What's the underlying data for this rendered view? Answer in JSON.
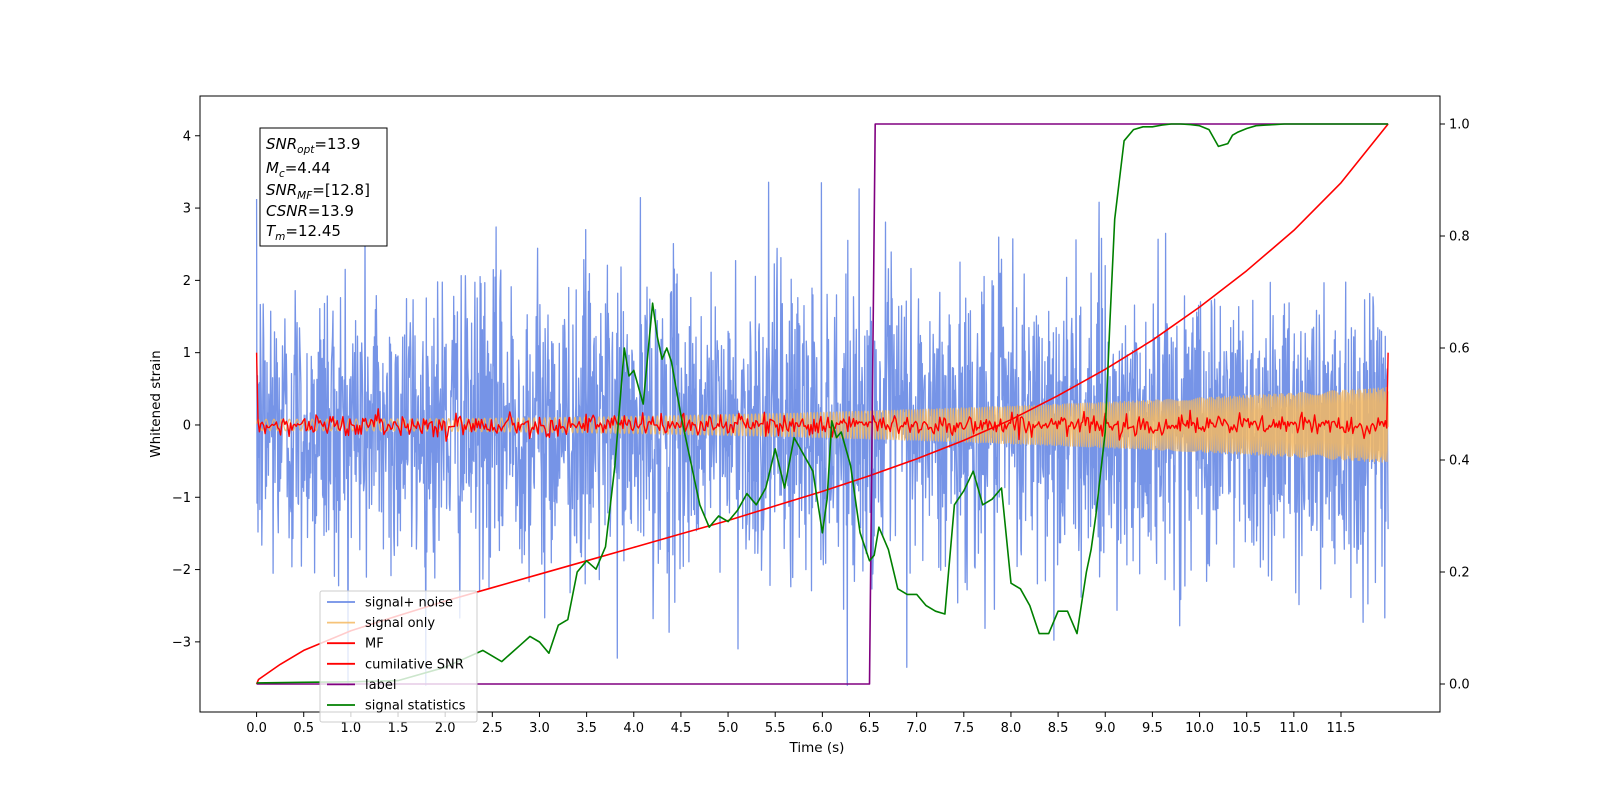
{
  "chart_data": {
    "type": "line",
    "xlabel": "Time (s)",
    "ylabel": "Whitened strain",
    "xlim": [
      -0.6,
      12.55
    ],
    "ylim": [
      -3.97,
      4.55
    ],
    "y2lim": [
      -0.05,
      1.05
    ],
    "x_ticks": [
      0.0,
      0.5,
      1.0,
      1.5,
      2.0,
      2.5,
      3.0,
      3.5,
      4.0,
      4.5,
      5.0,
      5.5,
      6.0,
      6.5,
      7.0,
      7.5,
      8.0,
      8.5,
      9.0,
      9.5,
      10.0,
      10.5,
      11.0,
      11.5
    ],
    "x_tick_labels": [
      "0.0",
      "0.5",
      "1.0",
      "1.5",
      "2.0",
      "2.5",
      "3.0",
      "3.5",
      "4.0",
      "4.5",
      "5.0",
      "5.5",
      "6.0",
      "6.5",
      "7.0",
      "7.5",
      "8.0",
      "8.5",
      "9.0",
      "9.5",
      "10.0",
      "10.5",
      "11.0",
      "11.5"
    ],
    "y_ticks": [
      -3,
      -2,
      -1,
      0,
      1,
      2,
      3,
      4
    ],
    "y_tick_labels": [
      "−3",
      "−2",
      "−1",
      "0",
      "1",
      "2",
      "3",
      "4"
    ],
    "y2_ticks": [
      0.0,
      0.2,
      0.4,
      0.6,
      0.8,
      1.0
    ],
    "y2_tick_labels": [
      "0.0",
      "0.2",
      "0.4",
      "0.6",
      "0.8",
      "1.0"
    ],
    "grid": false,
    "legend_position": "lower-left",
    "duration": 12.0,
    "series": [
      {
        "name": "signal+ noise",
        "color": "#6f8ee6",
        "axis": "left",
        "kind": "noise",
        "noise_std": 1.0,
        "noise_offset": 0.35,
        "samples": 2400
      },
      {
        "name": "signal only",
        "color": "#f5b962",
        "axis": "left",
        "kind": "chirp",
        "amplitude_start": 0.08,
        "amplitude_end": 0.52,
        "f_start": 12,
        "f_end": 60,
        "samples": 4000
      },
      {
        "name": "MF",
        "color": "#ff0000",
        "axis": "left",
        "kind": "mf",
        "start_value": 1.0,
        "noise_std": 0.07,
        "samples": 800
      },
      {
        "name": "cumilative SNR",
        "color": "#ff0000",
        "axis": "right",
        "kind": "curve",
        "x": [
          0.0,
          0.02,
          0.25,
          0.5,
          1.0,
          1.5,
          2.0,
          2.5,
          3.0,
          3.5,
          4.0,
          4.5,
          5.0,
          5.5,
          6.0,
          6.5,
          7.0,
          7.5,
          8.0,
          8.5,
          9.0,
          9.5,
          10.0,
          10.5,
          11.0,
          11.5,
          12.0
        ],
        "y": [
          0.0,
          0.008,
          0.035,
          0.06,
          0.095,
          0.122,
          0.148,
          0.172,
          0.196,
          0.22,
          0.244,
          0.268,
          0.292,
          0.318,
          0.344,
          0.372,
          0.402,
          0.435,
          0.472,
          0.515,
          0.562,
          0.614,
          0.673,
          0.738,
          0.81,
          0.895,
          1.0
        ]
      },
      {
        "name": "label",
        "color": "#800080",
        "axis": "right",
        "kind": "step",
        "x": [
          0.0,
          6.5,
          6.56,
          12.0
        ],
        "y": [
          0.0,
          0.0,
          1.0,
          1.0
        ]
      },
      {
        "name": "signal statistics",
        "color": "#008000",
        "axis": "right",
        "kind": "curve",
        "x": [
          0.0,
          0.5,
          1.0,
          1.5,
          2.0,
          2.2,
          2.4,
          2.6,
          2.8,
          2.9,
          3.0,
          3.1,
          3.2,
          3.3,
          3.4,
          3.5,
          3.6,
          3.7,
          3.8,
          3.9,
          3.95,
          4.0,
          4.1,
          4.2,
          4.25,
          4.3,
          4.35,
          4.4,
          4.5,
          4.6,
          4.7,
          4.8,
          4.9,
          5.0,
          5.1,
          5.2,
          5.3,
          5.4,
          5.5,
          5.6,
          5.7,
          5.8,
          5.9,
          6.0,
          6.05,
          6.1,
          6.15,
          6.2,
          6.3,
          6.4,
          6.5,
          6.55,
          6.6,
          6.7,
          6.8,
          6.9,
          7.0,
          7.1,
          7.2,
          7.3,
          7.4,
          7.5,
          7.6,
          7.7,
          7.8,
          7.9,
          8.0,
          8.1,
          8.2,
          8.3,
          8.4,
          8.5,
          8.6,
          8.7,
          8.8,
          8.85,
          8.9,
          9.0,
          9.05,
          9.1,
          9.2,
          9.3,
          9.4,
          9.5,
          9.6,
          9.7,
          9.8,
          9.9,
          10.0,
          10.1,
          10.2,
          10.3,
          10.35,
          10.4,
          10.5,
          10.6,
          10.7,
          10.8,
          10.9,
          11.0,
          11.2,
          11.4,
          11.6,
          11.8,
          12.0
        ],
        "y": [
          0.002,
          0.003,
          0.004,
          0.006,
          0.03,
          0.045,
          0.06,
          0.04,
          0.07,
          0.085,
          0.075,
          0.055,
          0.105,
          0.115,
          0.2,
          0.22,
          0.205,
          0.245,
          0.39,
          0.6,
          0.55,
          0.56,
          0.5,
          0.68,
          0.62,
          0.58,
          0.6,
          0.575,
          0.48,
          0.4,
          0.32,
          0.28,
          0.3,
          0.29,
          0.31,
          0.34,
          0.32,
          0.35,
          0.42,
          0.35,
          0.44,
          0.41,
          0.38,
          0.27,
          0.33,
          0.47,
          0.44,
          0.45,
          0.39,
          0.27,
          0.22,
          0.23,
          0.28,
          0.24,
          0.17,
          0.16,
          0.16,
          0.14,
          0.13,
          0.125,
          0.32,
          0.345,
          0.38,
          0.32,
          0.33,
          0.35,
          0.18,
          0.17,
          0.14,
          0.09,
          0.09,
          0.13,
          0.13,
          0.09,
          0.2,
          0.24,
          0.3,
          0.45,
          0.65,
          0.83,
          0.97,
          0.99,
          0.995,
          0.995,
          0.998,
          1.0,
          1.0,
          0.999,
          0.997,
          0.99,
          0.96,
          0.965,
          0.98,
          0.985,
          0.992,
          0.997,
          0.998,
          0.999,
          1.0,
          1.0,
          1.0,
          1.0,
          1.0,
          1.0,
          1.0
        ]
      }
    ],
    "annotations": [
      {
        "label": "SNR",
        "sub": "opt",
        "value": "=13.9"
      },
      {
        "label": "M",
        "sub": "c",
        "value": "=4.44"
      },
      {
        "label": "SNR",
        "sub": "MF",
        "value": "=[12.8]"
      },
      {
        "label": "CSNR",
        "sub": "",
        "value": "=13.9"
      },
      {
        "label": "T",
        "sub": "m",
        "value": "=12.45"
      }
    ]
  }
}
